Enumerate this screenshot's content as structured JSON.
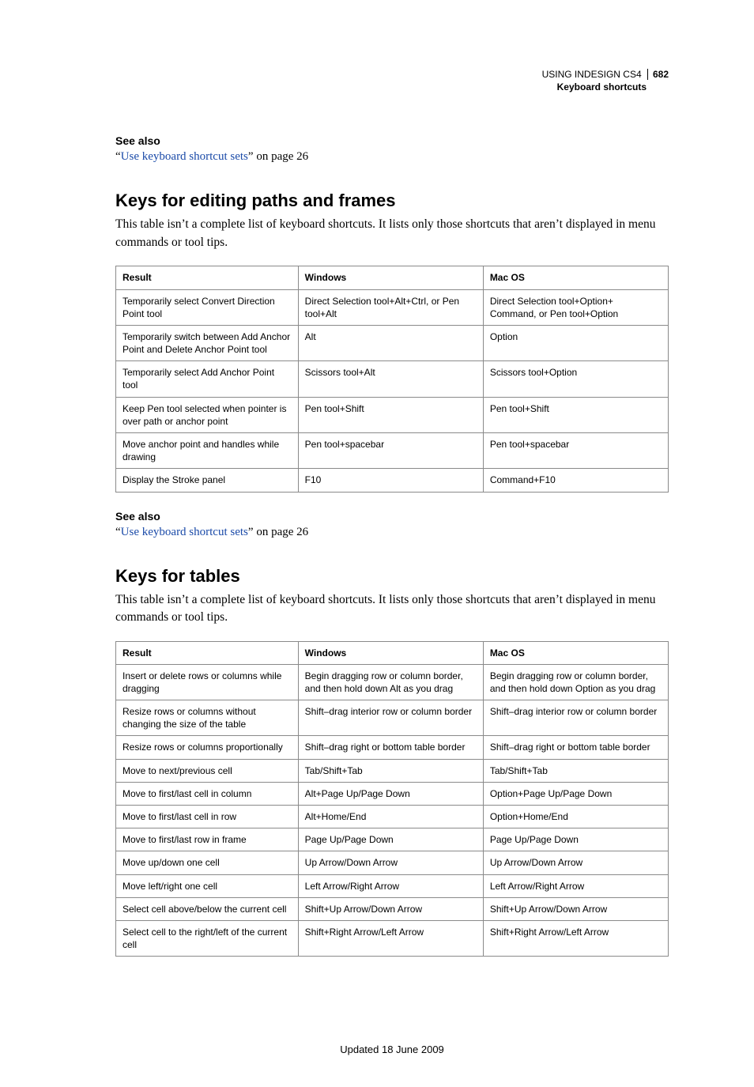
{
  "header": {
    "product": "USING INDESIGN CS4",
    "page_number": "682",
    "section": "Keyboard shortcuts"
  },
  "see_also": {
    "heading": "See also",
    "quote_open": "“",
    "quote_close": "”",
    "link_text": "Use keyboard shortcut sets",
    "suffix": " on page 26"
  },
  "section1": {
    "title": "Keys for editing paths and frames",
    "intro": "This table isn’t a complete list of keyboard shortcuts. It lists only those shortcuts that aren’t displayed in menu commands or tool tips.",
    "columns": [
      "Result",
      "Windows",
      "Mac OS"
    ],
    "rows": [
      [
        "Temporarily select Convert Direction Point tool",
        "Direct Selection tool+Alt+Ctrl, or Pen tool+Alt",
        "Direct Selection tool+Option+ Command, or Pen tool+Option"
      ],
      [
        "Temporarily switch between Add Anchor Point and Delete Anchor Point tool",
        "Alt",
        "Option"
      ],
      [
        "Temporarily select Add Anchor Point tool",
        "Scissors tool+Alt",
        "Scissors tool+Option"
      ],
      [
        "Keep Pen tool selected when pointer is over path or anchor point",
        "Pen tool+Shift",
        "Pen tool+Shift"
      ],
      [
        "Move anchor point and handles while drawing",
        "Pen tool+spacebar",
        "Pen tool+spacebar"
      ],
      [
        "Display the Stroke panel",
        "F10",
        "Command+F10"
      ]
    ]
  },
  "section2": {
    "title": "Keys for tables",
    "intro": "This table isn’t a complete list of keyboard shortcuts. It lists only those shortcuts that aren’t displayed in menu commands or tool tips.",
    "columns": [
      "Result",
      "Windows",
      "Mac OS"
    ],
    "rows": [
      [
        "Insert or delete rows or columns while dragging",
        "Begin dragging row or column border, and then hold down Alt as you drag",
        "Begin dragging row or column border, and then hold down Option as you drag"
      ],
      [
        "Resize rows or columns without changing the size of the table",
        "Shift–drag interior row or column border",
        "Shift–drag interior row or column border"
      ],
      [
        "Resize rows or columns proportionally",
        "Shift–drag right or bottom table border",
        "Shift–drag right or bottom table border"
      ],
      [
        "Move to next/previous cell",
        "Tab/Shift+Tab",
        "Tab/Shift+Tab"
      ],
      [
        "Move to first/last cell in column",
        "Alt+Page Up/Page Down",
        "Option+Page Up/Page Down"
      ],
      [
        "Move to first/last cell in row",
        "Alt+Home/End",
        "Option+Home/End"
      ],
      [
        "Move to first/last row in frame",
        "Page Up/Page Down",
        "Page Up/Page Down"
      ],
      [
        "Move up/down one cell",
        "Up Arrow/Down Arrow",
        "Up Arrow/Down Arrow"
      ],
      [
        "Move left/right one cell",
        "Left Arrow/Right Arrow",
        "Left Arrow/Right Arrow"
      ],
      [
        "Select cell above/below the current cell",
        "Shift+Up Arrow/Down Arrow",
        "Shift+Up Arrow/Down Arrow"
      ],
      [
        "Select cell to the right/left of the current cell",
        "Shift+Right Arrow/Left Arrow",
        "Shift+Right Arrow/Left Arrow"
      ]
    ]
  },
  "footer": {
    "updated": "Updated 18 June 2009"
  }
}
